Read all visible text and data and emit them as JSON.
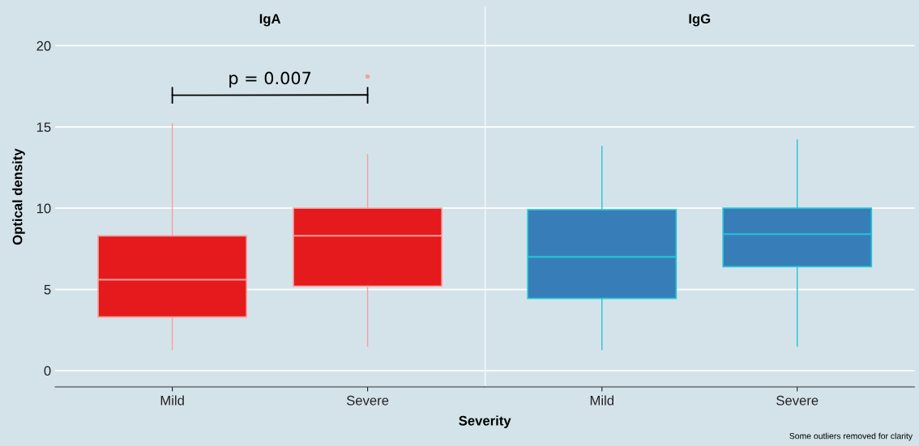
{
  "chart_data": [
    {
      "type": "box",
      "title": "IgA",
      "xlabel": "Severity",
      "ylabel": "Optical density",
      "categories": [
        "Mild",
        "Severe"
      ],
      "ylim": [
        -1.0,
        22.4
      ],
      "yticks": [
        0,
        5,
        10,
        15,
        20
      ],
      "grid": "y",
      "annotations": [
        "p = 0.007"
      ],
      "series": [
        {
          "color": "#e41a1c",
          "boxes": [
            {
              "low": 1.3,
              "q1": 3.3,
              "median": 5.6,
              "q3": 8.3,
              "high": 15.2
            },
            {
              "low": 1.5,
              "q1": 5.2,
              "median": 8.3,
              "q3": 10.0,
              "high": 13.3,
              "outliers": [
                18.1
              ]
            }
          ]
        }
      ]
    },
    {
      "type": "box",
      "title": "IgG",
      "categories": [
        "Mild",
        "Severe"
      ],
      "ylim": [
        -1.0,
        22.4
      ],
      "yticks": [
        0,
        5,
        10,
        15,
        20
      ],
      "grid": "y",
      "tick_labels": "x",
      "annotations": [
        "Some outliers removed for clarity"
      ],
      "series": [
        {
          "color": "#377eb8",
          "boxes": [
            {
              "low": 1.3,
              "q1": 4.45,
              "median": 7.0,
              "q3": 9.9,
              "high": 13.8
            },
            {
              "low": 1.5,
              "q1": 6.4,
              "median": 8.4,
              "q3": 10.0,
              "high": 14.2
            }
          ]
        }
      ]
    }
  ]
}
